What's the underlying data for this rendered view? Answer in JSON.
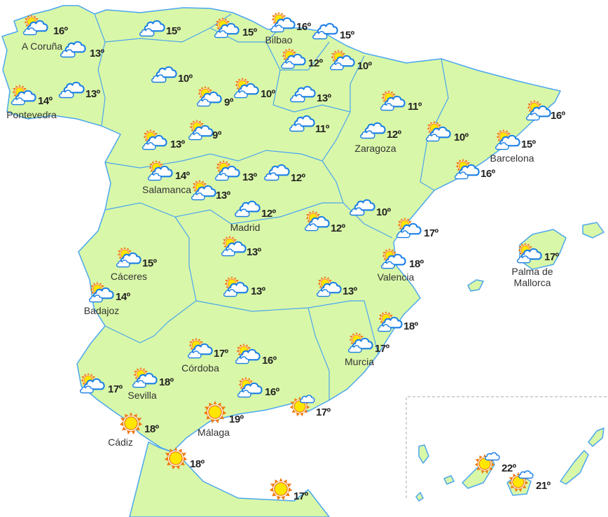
{
  "map": {
    "colors": {
      "land": "#d9f7a8",
      "border": "#4aa6f0",
      "sun": "#ffe600",
      "sun_rays": "#f07a10",
      "cloud_stroke": "#1a7fe6",
      "text": "#222222"
    },
    "icon_legend": {
      "sun": "sun-icon",
      "partly-cloudy": "partly-cloudy-icon",
      "cloudy": "cloudy-icon",
      "mostly-sunny": "mostly-sunny-icon"
    },
    "forecasts": [
      {
        "icon": "partly-cloudy",
        "temp": "16º",
        "city": "A Coruña"
      },
      {
        "icon": "cloudy",
        "temp": "13º"
      },
      {
        "icon": "partly-cloudy",
        "temp": "14º",
        "city": "Pontevedra"
      },
      {
        "icon": "cloudy",
        "temp": "13º"
      },
      {
        "icon": "cloudy",
        "temp": "15º"
      },
      {
        "icon": "partly-cloudy",
        "temp": "15º"
      },
      {
        "icon": "partly-cloudy",
        "temp": "16º",
        "city": "Bilbao"
      },
      {
        "icon": "cloudy",
        "temp": "15º"
      },
      {
        "icon": "cloudy",
        "temp": "10º"
      },
      {
        "icon": "partly-cloudy",
        "temp": "9º"
      },
      {
        "icon": "partly-cloudy",
        "temp": "10º"
      },
      {
        "icon": "partly-cloudy",
        "temp": "12º"
      },
      {
        "icon": "partly-cloudy",
        "temp": "10º"
      },
      {
        "icon": "cloudy",
        "temp": "13º"
      },
      {
        "icon": "cloudy",
        "temp": "11º"
      },
      {
        "icon": "partly-cloudy",
        "temp": "11º"
      },
      {
        "icon": "cloudy",
        "temp": "12º",
        "city": "Zaragoza"
      },
      {
        "icon": "partly-cloudy",
        "temp": "10º"
      },
      {
        "icon": "partly-cloudy",
        "temp": "16º"
      },
      {
        "icon": "partly-cloudy",
        "temp": "15º",
        "city": "Barcelona"
      },
      {
        "icon": "partly-cloudy",
        "temp": "16º"
      },
      {
        "icon": "partly-cloudy",
        "temp": "13º"
      },
      {
        "icon": "partly-cloudy",
        "temp": "9º"
      },
      {
        "icon": "partly-cloudy",
        "temp": "14º",
        "city": "Salamanca"
      },
      {
        "icon": "partly-cloudy",
        "temp": "13º"
      },
      {
        "icon": "cloudy",
        "temp": "12º"
      },
      {
        "icon": "partly-cloudy",
        "temp": "13º"
      },
      {
        "icon": "cloudy",
        "temp": "12º",
        "city": "Madrid"
      },
      {
        "icon": "partly-cloudy",
        "temp": "12º"
      },
      {
        "icon": "cloudy",
        "temp": "10º"
      },
      {
        "icon": "partly-cloudy",
        "temp": "17º"
      },
      {
        "icon": "partly-cloudy",
        "temp": "13º"
      },
      {
        "icon": "partly-cloudy",
        "temp": "15º",
        "city": "Cáceres"
      },
      {
        "icon": "partly-cloudy",
        "temp": "14º",
        "city": "Badajoz"
      },
      {
        "icon": "partly-cloudy",
        "temp": "13º"
      },
      {
        "icon": "partly-cloudy",
        "temp": "13º"
      },
      {
        "icon": "partly-cloudy",
        "temp": "18º",
        "city": "Valencia"
      },
      {
        "icon": "partly-cloudy",
        "temp": "17º",
        "city": "Palma de Mallorca"
      },
      {
        "icon": "partly-cloudy",
        "temp": "18º"
      },
      {
        "icon": "partly-cloudy",
        "temp": "17º",
        "city": "Murcia"
      },
      {
        "icon": "partly-cloudy",
        "temp": "17º",
        "city": "Córdoba"
      },
      {
        "icon": "partly-cloudy",
        "temp": "16º"
      },
      {
        "icon": "partly-cloudy",
        "temp": "17º"
      },
      {
        "icon": "partly-cloudy",
        "temp": "18º",
        "city": "Sevilla"
      },
      {
        "icon": "partly-cloudy",
        "temp": "16º"
      },
      {
        "icon": "mostly-sunny",
        "temp": "17º"
      },
      {
        "icon": "sun",
        "temp": "18º",
        "city": "Cádiz"
      },
      {
        "icon": "sun",
        "temp": "19º",
        "city": "Málaga"
      },
      {
        "icon": "sun",
        "temp": "18º"
      },
      {
        "icon": "sun",
        "temp": "17º"
      },
      {
        "icon": "mostly-sunny",
        "temp": "22º"
      },
      {
        "icon": "mostly-sunny",
        "temp": "21º"
      }
    ]
  }
}
